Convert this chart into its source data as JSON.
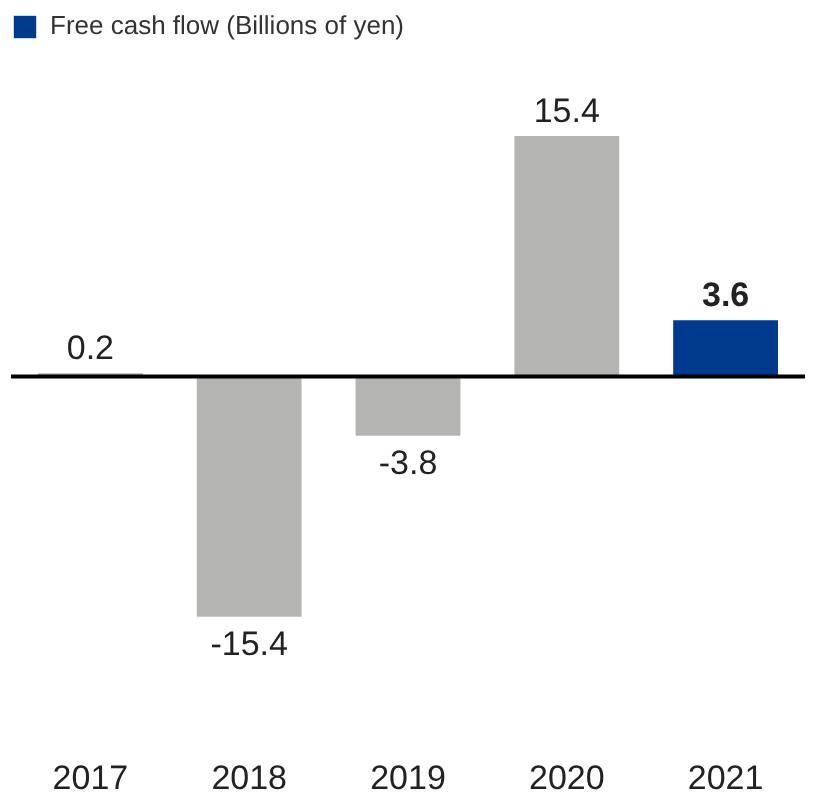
{
  "chart_data": {
    "type": "bar",
    "categories": [
      "2017",
      "2018",
      "2019",
      "2020",
      "2021"
    ],
    "series": [
      {
        "color": "#b4b5b3",
        "values": [
          0.2,
          -15.4,
          -3.8,
          15.4,
          null
        ]
      },
      {
        "name": "Free cash flow (Billions of yen)",
        "color": "#003a8c",
        "values": [
          null,
          null,
          null,
          null,
          3.6
        ]
      }
    ],
    "data_labels": true,
    "legend": "top left",
    "grid": false
  }
}
